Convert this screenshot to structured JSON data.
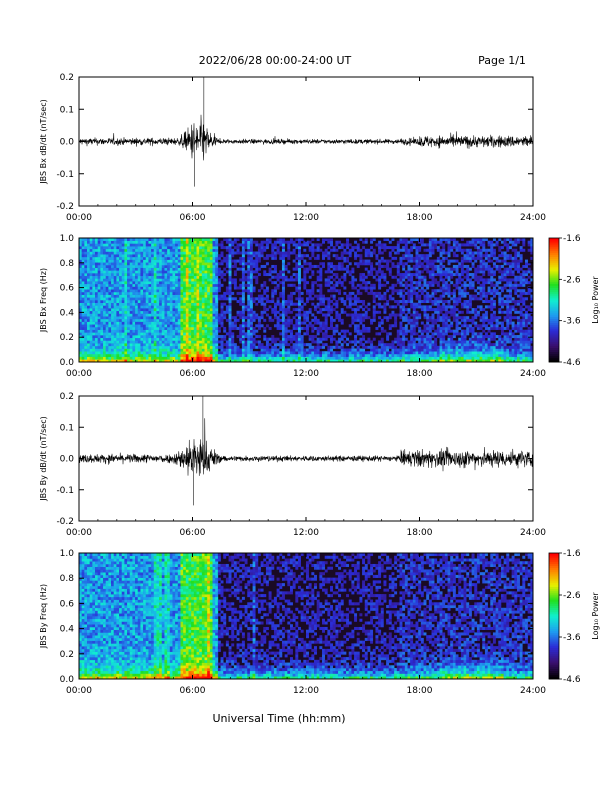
{
  "header": {
    "date_range": "2022/06/28  00:00-24:00 UT",
    "page": "Page 1/1"
  },
  "footer": {
    "xlabel": "Universal Time (hh:mm)"
  },
  "colorbar_label": "Log₁₀ Power",
  "colors": {
    "trace": "#000000",
    "spectrogram_background": "#1a0a24",
    "colormap": [
      "#000000",
      "#3a0f6e",
      "#2b2bd6",
      "#1e9cf0",
      "#10f0d0",
      "#20e020",
      "#e8f000",
      "#ff8000",
      "#ff0000"
    ]
  },
  "chart_data": [
    {
      "type": "line",
      "title": "",
      "ylabel": "JBS Bx dB/dt (nT/sec)",
      "xlabel": "",
      "xlim": [
        0,
        24
      ],
      "ylim": [
        -0.2,
        0.2
      ],
      "xticks": [
        "00:00",
        "06:00",
        "12:00",
        "18:00",
        "24:00"
      ],
      "yticks": [
        "-0.2",
        "-0.1",
        "0.0",
        "0.1",
        "0.2"
      ],
      "description_values": {
        "baseline_amplitude": 0.02,
        "event_window_hours": [
          5.3,
          7.3
        ],
        "event_peak": 0.2,
        "event_min": -0.14,
        "late_activity_window_hours": [
          18,
          24
        ],
        "late_activity_amplitude": 0.04
      }
    },
    {
      "type": "heatmap",
      "title": "",
      "ylabel": "JBS Bx Freq (Hz)",
      "xlabel": "",
      "xlim": [
        0,
        24
      ],
      "ylim": [
        0.0,
        1.0
      ],
      "xticks": [
        "00:00",
        "06:00",
        "12:00",
        "18:00",
        "24:00"
      ],
      "yticks": [
        "0.0",
        "0.2",
        "0.4",
        "0.6",
        "0.8",
        "1.0"
      ],
      "colorbar": {
        "label": "Log₁₀ Power",
        "ticks": [
          "-1.6",
          "-2.6",
          "-3.6",
          "-4.6"
        ],
        "range": [
          -4.6,
          -1.6
        ]
      }
    },
    {
      "type": "line",
      "title": "",
      "ylabel": "JBS By dB/dt (nT/sec)",
      "xlabel": "",
      "xlim": [
        0,
        24
      ],
      "ylim": [
        -0.2,
        0.2
      ],
      "xticks": [
        "00:00",
        "06:00",
        "12:00",
        "18:00",
        "24:00"
      ],
      "yticks": [
        "-0.2",
        "-0.1",
        "0.0",
        "0.1",
        "0.2"
      ],
      "description_values": {
        "baseline_amplitude": 0.025,
        "event_window_hours": [
          5.0,
          7.5
        ],
        "event_peak": 0.2,
        "event_min": -0.15,
        "late_activity_window_hours": [
          17,
          24
        ],
        "late_activity_amplitude": 0.06
      }
    },
    {
      "type": "heatmap",
      "title": "",
      "ylabel": "JBS By Freq (Hz)",
      "xlabel": "Universal Time (hh:mm)",
      "xlim": [
        0,
        24
      ],
      "ylim": [
        0.0,
        1.0
      ],
      "xticks": [
        "00:00",
        "06:00",
        "12:00",
        "18:00",
        "24:00"
      ],
      "yticks": [
        "0.0",
        "0.2",
        "0.4",
        "0.6",
        "0.8",
        "1.0"
      ],
      "colorbar": {
        "label": "Log₁₀ Power",
        "ticks": [
          "-1.6",
          "-2.6",
          "-3.6",
          "-4.6"
        ],
        "range": [
          -4.6,
          -1.6
        ]
      }
    }
  ]
}
